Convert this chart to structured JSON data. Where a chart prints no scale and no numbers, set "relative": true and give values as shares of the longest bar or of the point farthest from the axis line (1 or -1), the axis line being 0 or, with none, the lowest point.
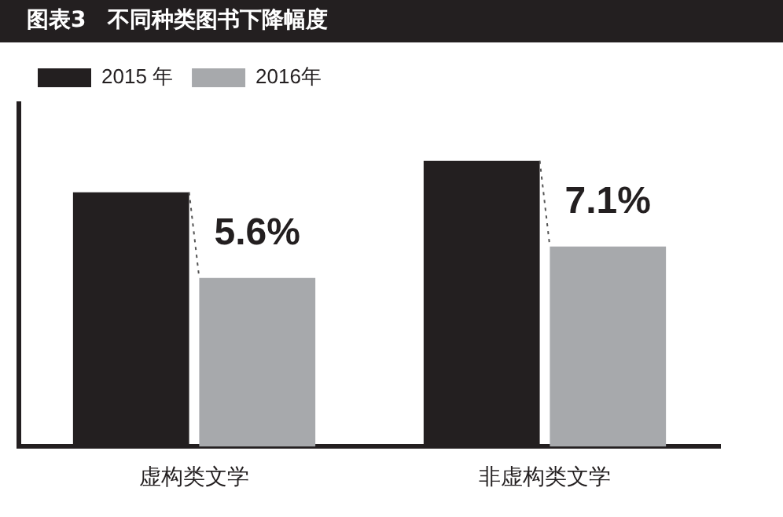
{
  "chart_data": {
    "type": "bar",
    "title": "图表3　不同种类图书下降幅度",
    "relative": true,
    "categories": [
      "虚构类文学",
      "非虚构类文学"
    ],
    "series": [
      {
        "name": "2015 年",
        "color": "#231f20",
        "values": [
          0.89,
          1
        ]
      },
      {
        "name": "2016年",
        "color": "#a7a9ac",
        "values": [
          0.59,
          0.7
        ]
      }
    ],
    "annotations": [
      "5.6%",
      "7.1%"
    ],
    "legend": "top",
    "grid": false
  }
}
